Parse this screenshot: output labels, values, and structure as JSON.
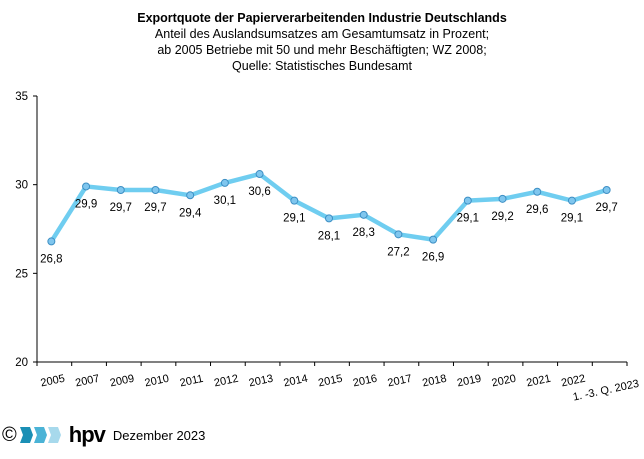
{
  "chart_data": {
    "type": "line",
    "title": "Exportquote der Papierverarbeitenden Industrie Deutschlands",
    "subtitle": [
      "Anteil des Auslandsumsatzes am Gesamtumsatz in Prozent;",
      "ab 2005 Betriebe mit 50 und mehr Beschäftigten; WZ 2008;",
      "Quelle: Statistisches Bundesamt"
    ],
    "categories": [
      "2005",
      "2007",
      "2009",
      "2010",
      "2011",
      "2012",
      "2013",
      "2014",
      "2015",
      "2016",
      "2017",
      "2018",
      "2019",
      "2020",
      "2021",
      "2022",
      "1. -3. Q. 2023"
    ],
    "values": [
      26.8,
      29.9,
      29.7,
      29.7,
      29.4,
      30.1,
      30.6,
      29.1,
      28.1,
      28.3,
      27.2,
      26.9,
      29.1,
      29.2,
      29.6,
      29.1,
      29.7
    ],
    "data_labels": [
      "26,8",
      "29,9",
      "29,7",
      "29,7",
      "29,4",
      "30,1",
      "30,6",
      "29,1",
      "28,1",
      "28,3",
      "27,2",
      "26,9",
      "29,1",
      "29,2",
      "29,6",
      "29,1",
      "29,7"
    ],
    "yticks": [
      20,
      25,
      30,
      35
    ],
    "ylim": [
      20,
      35
    ],
    "grid": false,
    "line_color": "#6fcdf0",
    "marker_color": "#7fc6ee"
  },
  "footer": {
    "copyright": "©",
    "logo": "hpv",
    "date": "Dezember 2023"
  }
}
